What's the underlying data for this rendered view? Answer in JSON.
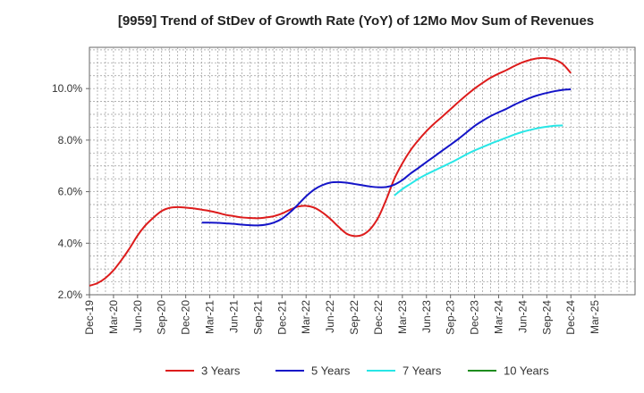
{
  "chart_data": {
    "type": "line",
    "title": "[9959]  Trend of StDev of Growth Rate (YoY) of 12Mo Mov Sum of Revenues",
    "xlabel": "",
    "ylabel": "",
    "x_range_months": [
      0,
      68
    ],
    "x_ticks": [
      {
        "label": "Dec-19",
        "m": 0
      },
      {
        "label": "Mar-20",
        "m": 3
      },
      {
        "label": "Jun-20",
        "m": 6
      },
      {
        "label": "Sep-20",
        "m": 9
      },
      {
        "label": "Dec-20",
        "m": 12
      },
      {
        "label": "Mar-21",
        "m": 15
      },
      {
        "label": "Jun-21",
        "m": 18
      },
      {
        "label": "Sep-21",
        "m": 21
      },
      {
        "label": "Dec-21",
        "m": 24
      },
      {
        "label": "Mar-22",
        "m": 27
      },
      {
        "label": "Jun-22",
        "m": 30
      },
      {
        "label": "Sep-22",
        "m": 33
      },
      {
        "label": "Dec-22",
        "m": 36
      },
      {
        "label": "Mar-23",
        "m": 39
      },
      {
        "label": "Jun-23",
        "m": 42
      },
      {
        "label": "Sep-23",
        "m": 45
      },
      {
        "label": "Dec-23",
        "m": 48
      },
      {
        "label": "Mar-24",
        "m": 51
      },
      {
        "label": "Jun-24",
        "m": 54
      },
      {
        "label": "Sep-24",
        "m": 57
      },
      {
        "label": "Dec-24",
        "m": 60
      },
      {
        "label": "Mar-25",
        "m": 63
      }
    ],
    "ylim": [
      2.0,
      11.6
    ],
    "y_ticks": [
      {
        "label": "2.0%",
        "v": 2.0
      },
      {
        "label": "4.0%",
        "v": 4.0
      },
      {
        "label": "6.0%",
        "v": 6.0
      },
      {
        "label": "8.0%",
        "v": 8.0
      },
      {
        "label": "10.0%",
        "v": 10.0
      }
    ],
    "grid": true,
    "legend_position": "bottom",
    "series": [
      {
        "name": "3 Years",
        "color": "#dd1c1c",
        "start_month": 0,
        "values": [
          2.35,
          2.45,
          2.65,
          2.95,
          3.35,
          3.8,
          4.3,
          4.7,
          5.0,
          5.25,
          5.37,
          5.4,
          5.38,
          5.35,
          5.3,
          5.25,
          5.18,
          5.1,
          5.05,
          5.0,
          4.98,
          4.97,
          5.0,
          5.05,
          5.15,
          5.3,
          5.42,
          5.45,
          5.38,
          5.2,
          4.95,
          4.65,
          4.38,
          4.28,
          4.32,
          4.55,
          5.0,
          5.7,
          6.5,
          7.1,
          7.6,
          8.0,
          8.35,
          8.65,
          8.92,
          9.2,
          9.48,
          9.75,
          10.0,
          10.22,
          10.42,
          10.58,
          10.72,
          10.88,
          11.02,
          11.12,
          11.18,
          11.18,
          11.12,
          10.95,
          10.6
        ]
      },
      {
        "name": "5 Years",
        "color": "#1414c8",
        "start_month": 14,
        "values": [
          4.8,
          4.8,
          4.79,
          4.77,
          4.75,
          4.72,
          4.7,
          4.69,
          4.72,
          4.8,
          4.95,
          5.2,
          5.5,
          5.82,
          6.08,
          6.25,
          6.35,
          6.37,
          6.35,
          6.3,
          6.25,
          6.2,
          6.17,
          6.18,
          6.27,
          6.45,
          6.7,
          6.92,
          7.15,
          7.37,
          7.6,
          7.82,
          8.05,
          8.3,
          8.55,
          8.75,
          8.93,
          9.08,
          9.22,
          9.38,
          9.52,
          9.65,
          9.75,
          9.83,
          9.9,
          9.95,
          9.97
        ]
      },
      {
        "name": "7 Years",
        "color": "#28e6e6",
        "start_month": 38,
        "values": [
          5.85,
          6.1,
          6.3,
          6.5,
          6.67,
          6.82,
          6.97,
          7.12,
          7.28,
          7.45,
          7.6,
          7.73,
          7.86,
          7.98,
          8.1,
          8.22,
          8.32,
          8.4,
          8.47,
          8.52,
          8.56,
          8.57
        ]
      },
      {
        "name": "10 Years",
        "color": "#1e8c1e",
        "start_month": 0,
        "values": []
      }
    ]
  }
}
